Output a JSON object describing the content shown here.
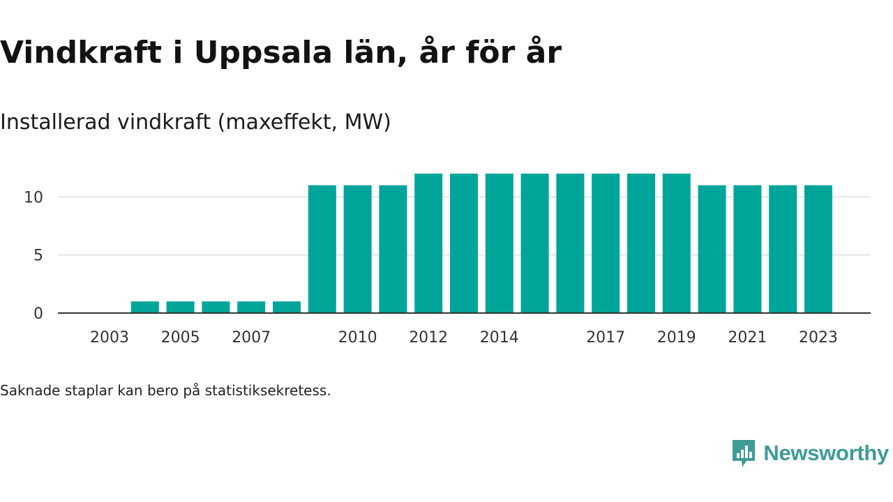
{
  "title": "Vindkraft i Uppsala län, år för år",
  "subtitle": "Installerad vindkraft (maxeffekt, MW)",
  "note": "Saknade staplar kan bero på statistiksekretess.",
  "brand": {
    "name": "Newsworthy",
    "icon": "newsworthy-logo-icon",
    "color": "#3f9c97"
  },
  "colors": {
    "bar": "#00a59a",
    "grid": "#dddddd",
    "axis": "#333333"
  },
  "chart_data": {
    "type": "bar",
    "categories": [
      "2003",
      "2004",
      "2005",
      "2006",
      "2007",
      "2008",
      "2009",
      "2010",
      "2011",
      "2012",
      "2013",
      "2014",
      "2015",
      "2016",
      "2017",
      "2018",
      "2019",
      "2020",
      "2021",
      "2022",
      "2023"
    ],
    "values": [
      null,
      1,
      1,
      1,
      1,
      1,
      11,
      11,
      11,
      12,
      12,
      12,
      12,
      12,
      12,
      12,
      12,
      11,
      11,
      11,
      11
    ],
    "x_tick_labels": [
      "2003",
      "2005",
      "2007",
      "2010",
      "2012",
      "2014",
      "2017",
      "2019",
      "2021",
      "2023"
    ],
    "y_ticks": [
      0,
      5,
      10
    ],
    "ylim": [
      0,
      12
    ],
    "xlabel": "",
    "ylabel": "",
    "grid": true,
    "legend": "none"
  }
}
